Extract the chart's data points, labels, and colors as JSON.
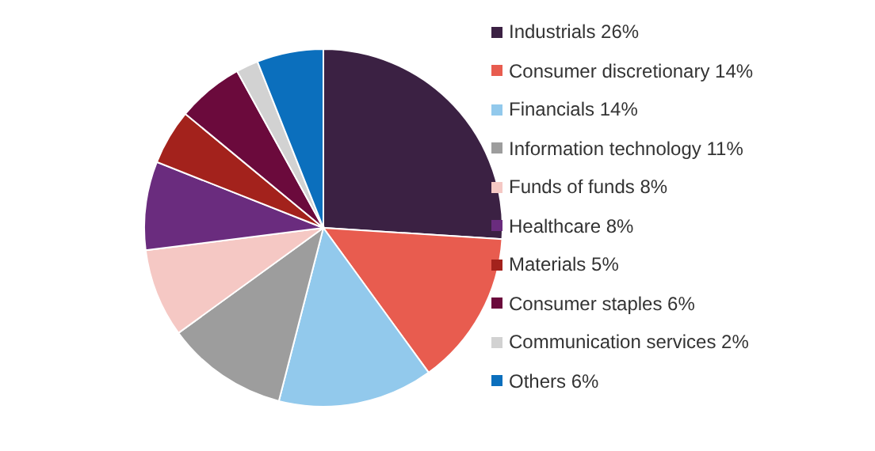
{
  "chart_data": {
    "type": "pie",
    "categories": [
      "Industrials 26%",
      "Consumer discretionary 14%",
      "Financials 14%",
      "Information technology 11%",
      "Funds of funds 8%",
      "Healthcare 8%",
      "Materials 5%",
      "Consumer staples 6%",
      "Communication services 2%",
      "Others 6%"
    ],
    "values": [
      26,
      14,
      14,
      11,
      8,
      8,
      5,
      6,
      2,
      6
    ],
    "colors": [
      "#3b2143",
      "#e85c4f",
      "#92c9ec",
      "#9d9d9d",
      "#f5c8c4",
      "#6a2c7e",
      "#a3221c",
      "#6b0a3c",
      "#d2d2d2",
      "#0b6fbd"
    ],
    "legend": "right"
  }
}
